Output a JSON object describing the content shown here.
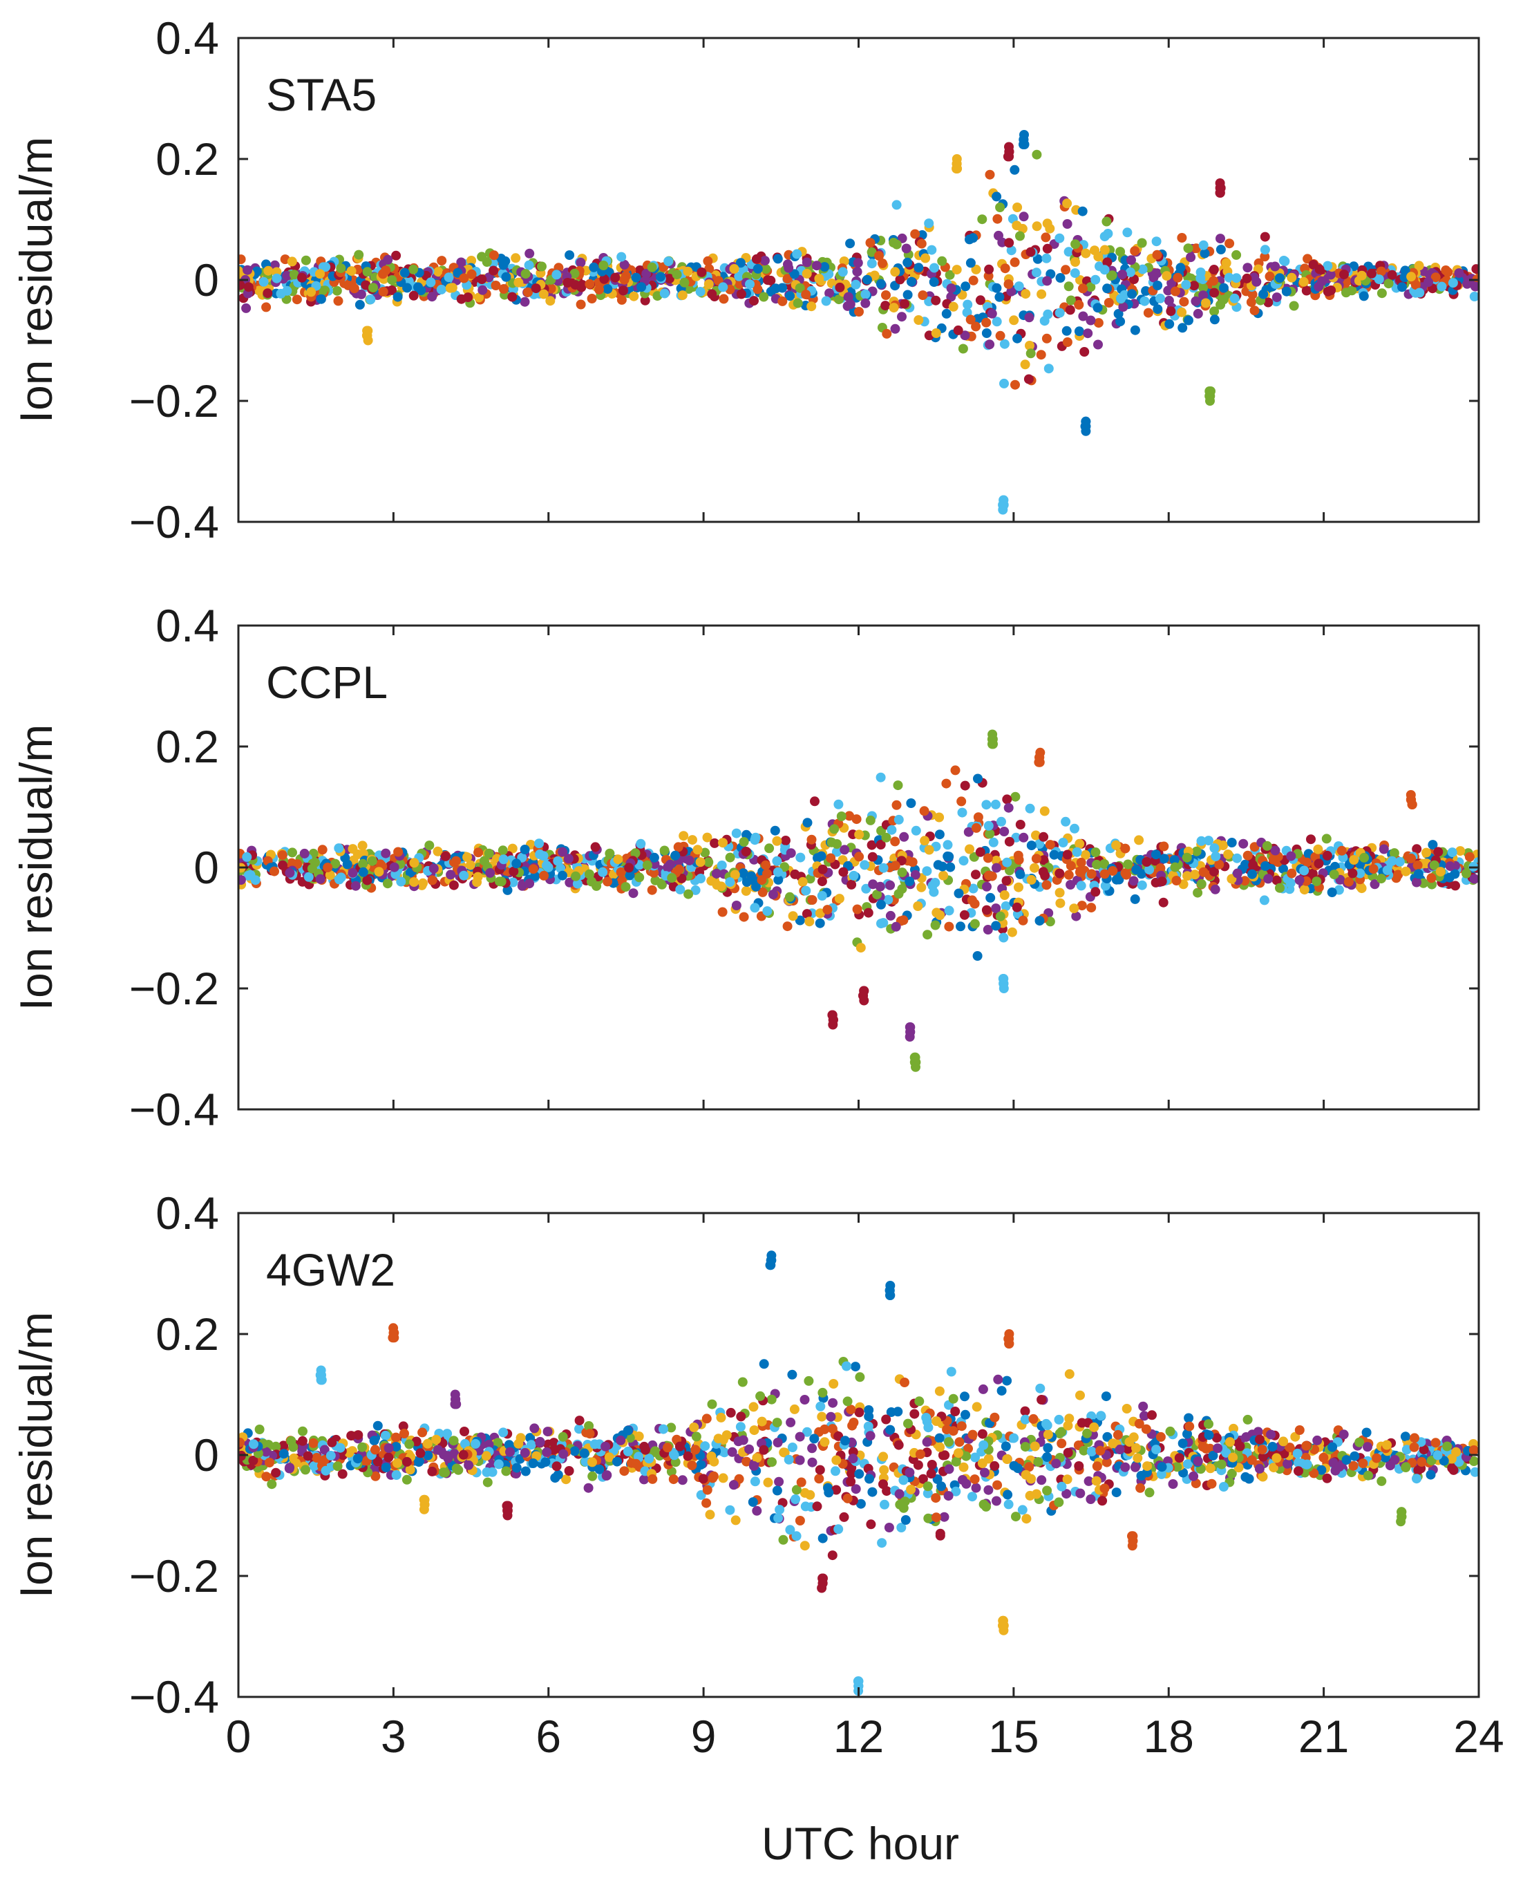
{
  "figure": {
    "xlabel": "UTC hour",
    "ylabel": "Ion residual/m"
  },
  "series_colors": {
    "blue": "#0072BD",
    "orange": "#D95319",
    "yellow": "#EDB120",
    "purple": "#7E2F8E",
    "green": "#77AC30",
    "light_blue": "#4DBEEE",
    "dark_red": "#A2142F"
  },
  "chart_data": [
    {
      "type": "scatter",
      "panel": "top",
      "title": "STA5",
      "xlabel": "",
      "ylabel": "Ion residual/m",
      "xlim": [
        0,
        24
      ],
      "ylim": [
        -0.4,
        0.4
      ],
      "xticks": [
        0,
        3,
        6,
        9,
        12,
        15,
        18,
        21,
        24
      ],
      "yticks": [
        0.4,
        0.2,
        0,
        -0.2,
        -0.4
      ],
      "ytick_labels": [
        "0.4",
        "0.2",
        "0",
        "−0.2",
        "−0.4"
      ],
      "xtick_labels_shown": false,
      "envelope": [
        [
          0,
          0.05
        ],
        [
          6,
          0.05
        ],
        [
          9,
          0.04
        ],
        [
          11.5,
          0.06
        ],
        [
          12.5,
          0.12
        ],
        [
          14,
          0.18
        ],
        [
          15,
          0.22
        ],
        [
          16.5,
          0.16
        ],
        [
          18,
          0.1
        ],
        [
          19.5,
          0.08
        ],
        [
          21,
          0.04
        ],
        [
          24,
          0.03
        ]
      ],
      "extremes": [
        {
          "x": 14.8,
          "y": -0.38,
          "series": "light_blue"
        },
        {
          "x": 15.2,
          "y": 0.24,
          "series": "blue"
        },
        {
          "x": 14.9,
          "y": 0.22,
          "series": "dark_red"
        },
        {
          "x": 2.5,
          "y": -0.1,
          "series": "yellow"
        },
        {
          "x": 18.8,
          "y": -0.2,
          "series": "green"
        },
        {
          "x": 13.9,
          "y": 0.2,
          "series": "yellow"
        },
        {
          "x": 16.4,
          "y": -0.25,
          "series": "blue"
        },
        {
          "x": 19.0,
          "y": 0.16,
          "series": "dark_red"
        }
      ]
    },
    {
      "type": "scatter",
      "panel": "middle",
      "title": "CCPL",
      "xlabel": "",
      "ylabel": "Ion residual/m",
      "xlim": [
        0,
        24
      ],
      "ylim": [
        -0.4,
        0.4
      ],
      "xticks": [
        0,
        3,
        6,
        9,
        12,
        15,
        18,
        21,
        24
      ],
      "yticks": [
        0.4,
        0.2,
        0,
        -0.2,
        -0.4
      ],
      "ytick_labels": [
        "0.4",
        "0.2",
        "0",
        "−0.2",
        "−0.4"
      ],
      "xtick_labels_shown": false,
      "envelope": [
        [
          0,
          0.04
        ],
        [
          5,
          0.04
        ],
        [
          8.5,
          0.05
        ],
        [
          10,
          0.1
        ],
        [
          11.5,
          0.14
        ],
        [
          13,
          0.16
        ],
        [
          14.5,
          0.2
        ],
        [
          15.5,
          0.12
        ],
        [
          17,
          0.06
        ],
        [
          24,
          0.04
        ]
      ],
      "extremes": [
        {
          "x": 13.1,
          "y": -0.33,
          "series": "green"
        },
        {
          "x": 13.0,
          "y": -0.28,
          "series": "purple"
        },
        {
          "x": 11.5,
          "y": -0.26,
          "series": "dark_red"
        },
        {
          "x": 14.6,
          "y": 0.22,
          "series": "green"
        },
        {
          "x": 14.8,
          "y": -0.2,
          "series": "light_blue"
        },
        {
          "x": 15.5,
          "y": 0.19,
          "series": "orange"
        },
        {
          "x": 22.7,
          "y": 0.12,
          "series": "orange"
        },
        {
          "x": 12.1,
          "y": -0.22,
          "series": "dark_red"
        }
      ]
    },
    {
      "type": "scatter",
      "panel": "bottom",
      "title": "4GW2",
      "xlabel": "UTC hour",
      "ylabel": "Ion residual/m",
      "xlim": [
        0,
        24
      ],
      "ylim": [
        -0.4,
        0.4
      ],
      "xticks": [
        0,
        3,
        6,
        9,
        12,
        15,
        18,
        21,
        24
      ],
      "xtick_labels": [
        "0",
        "3",
        "6",
        "9",
        "12",
        "15",
        "18",
        "21",
        "24"
      ],
      "yticks": [
        0.4,
        0.2,
        0,
        -0.2,
        -0.4
      ],
      "ytick_labels": [
        "0.4",
        "0.2",
        "0",
        "−0.2",
        "−0.4"
      ],
      "xtick_labels_shown": true,
      "envelope": [
        [
          0,
          0.05
        ],
        [
          5,
          0.05
        ],
        [
          8.5,
          0.06
        ],
        [
          9.5,
          0.15
        ],
        [
          10.5,
          0.2
        ],
        [
          12,
          0.22
        ],
        [
          13.5,
          0.15
        ],
        [
          15,
          0.14
        ],
        [
          17,
          0.1
        ],
        [
          18.5,
          0.07
        ],
        [
          20,
          0.05
        ],
        [
          24,
          0.04
        ]
      ],
      "extremes": [
        {
          "x": 10.3,
          "y": 0.33,
          "series": "blue"
        },
        {
          "x": 12.6,
          "y": 0.28,
          "series": "blue"
        },
        {
          "x": 3.0,
          "y": 0.21,
          "series": "orange"
        },
        {
          "x": 1.6,
          "y": 0.14,
          "series": "light_blue"
        },
        {
          "x": 4.2,
          "y": 0.1,
          "series": "purple"
        },
        {
          "x": 12.0,
          "y": -0.39,
          "series": "light_blue"
        },
        {
          "x": 14.8,
          "y": -0.29,
          "series": "yellow"
        },
        {
          "x": 14.9,
          "y": 0.2,
          "series": "orange"
        },
        {
          "x": 5.2,
          "y": -0.1,
          "series": "dark_red"
        },
        {
          "x": 3.6,
          "y": -0.09,
          "series": "yellow"
        },
        {
          "x": 11.3,
          "y": -0.22,
          "series": "dark_red"
        },
        {
          "x": 17.3,
          "y": -0.15,
          "series": "orange"
        },
        {
          "x": 22.5,
          "y": -0.11,
          "series": "green"
        }
      ]
    }
  ]
}
